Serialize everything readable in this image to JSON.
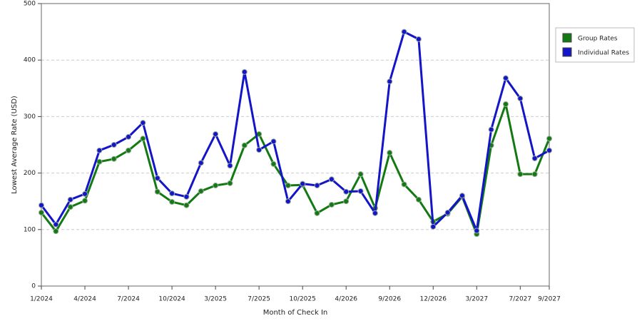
{
  "chart_data": {
    "type": "line",
    "x_label": "Month of Check In",
    "y_label": "Lowest Average Rate (USD)",
    "categories": [
      "1/2024",
      null,
      null,
      "4/2024",
      null,
      null,
      "7/2024",
      null,
      null,
      "10/2024",
      null,
      null,
      "3/2025",
      null,
      null,
      "7/2025",
      null,
      null,
      "10/2025",
      null,
      null,
      "4/2026",
      null,
      null,
      "9/2026",
      null,
      null,
      "12/2026",
      null,
      null,
      "3/2027",
      null,
      null,
      "7/2027",
      null,
      "9/2027"
    ],
    "series": [
      {
        "name": "Group Rates",
        "color": "#137a13",
        "values": [
          130,
          97,
          140,
          151,
          220,
          225,
          240,
          261,
          167,
          149,
          143,
          168,
          178,
          182,
          249,
          269,
          216,
          178,
          179,
          129,
          144,
          150,
          198,
          138,
          236,
          180,
          153,
          114,
          128,
          158,
          92,
          249,
          322,
          198,
          198,
          261
        ]
      },
      {
        "name": "Individual Rates",
        "color": "#1414c8",
        "values": [
          143,
          109,
          153,
          163,
          240,
          250,
          264,
          289,
          191,
          164,
          158,
          218,
          269,
          213,
          379,
          241,
          256,
          150,
          181,
          178,
          189,
          167,
          168,
          129,
          362,
          450,
          437,
          105,
          130,
          160,
          98,
          277,
          368,
          332,
          226,
          240
        ]
      }
    ],
    "ylim": [
      0,
      500
    ],
    "yticks": [
      0,
      100,
      200,
      300,
      400,
      500
    ],
    "grid": true,
    "legend": "right"
  }
}
